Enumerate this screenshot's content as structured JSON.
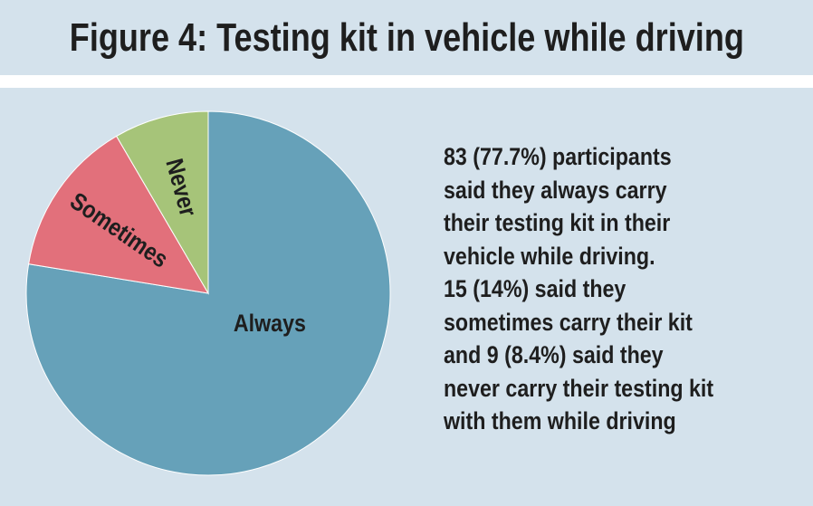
{
  "title": "Figure 4: Testing kit in vehicle while driving",
  "description_lines": [
    "83 (77.7%) participants",
    "said they always carry",
    "their testing kit in their",
    "vehicle while driving.",
    "15 (14%) said they",
    "sometimes carry their kit",
    "and 9 (8.4%) said they",
    "never carry their testing kit",
    "with them while driving"
  ],
  "colors": {
    "background": "#d4e2ec",
    "always": "#66a1b9",
    "sometimes": "#e2707b",
    "never": "#a6c479",
    "text": "#1e1e1e"
  },
  "chart_data": {
    "type": "pie",
    "title": "Figure 4: Testing kit in vehicle while driving",
    "start": "12 o'clock",
    "direction": "clockwise",
    "slices": [
      {
        "label": "Always",
        "value": 83,
        "percent": 77.7,
        "color": "#66a1b9"
      },
      {
        "label": "Sometimes",
        "value": 15,
        "percent": 14,
        "color": "#e2707b"
      },
      {
        "label": "Never",
        "value": 9,
        "percent": 8.4,
        "color": "#a6c479"
      }
    ]
  }
}
